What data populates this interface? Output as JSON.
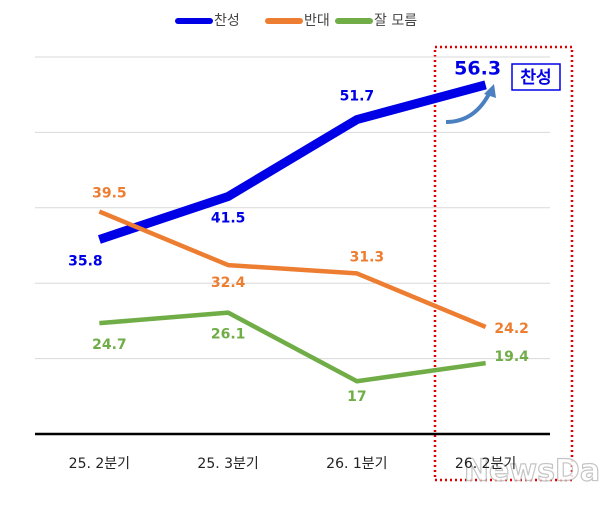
{
  "chart_data": {
    "type": "line",
    "categories": [
      "25. 2분기",
      "25. 3분기",
      "26. 1분기",
      "26. 2분기"
    ],
    "series": [
      {
        "name": "찬성",
        "color": "#0000e6",
        "values": [
          35.8,
          41.5,
          51.7,
          56.3
        ]
      },
      {
        "name": "반대",
        "color": "#ed7d31",
        "values": [
          39.5,
          32.4,
          31.3,
          24.2
        ]
      },
      {
        "name": "잘 모름",
        "color": "#70ad47",
        "values": [
          24.7,
          26.1,
          17,
          19.4
        ]
      }
    ],
    "ylim": [
      10,
      60
    ],
    "yticks": [
      10,
      20,
      30,
      40,
      50,
      60
    ],
    "grid": true,
    "legend": "top",
    "annotation": "찬성",
    "watermark": "NewsDa"
  }
}
